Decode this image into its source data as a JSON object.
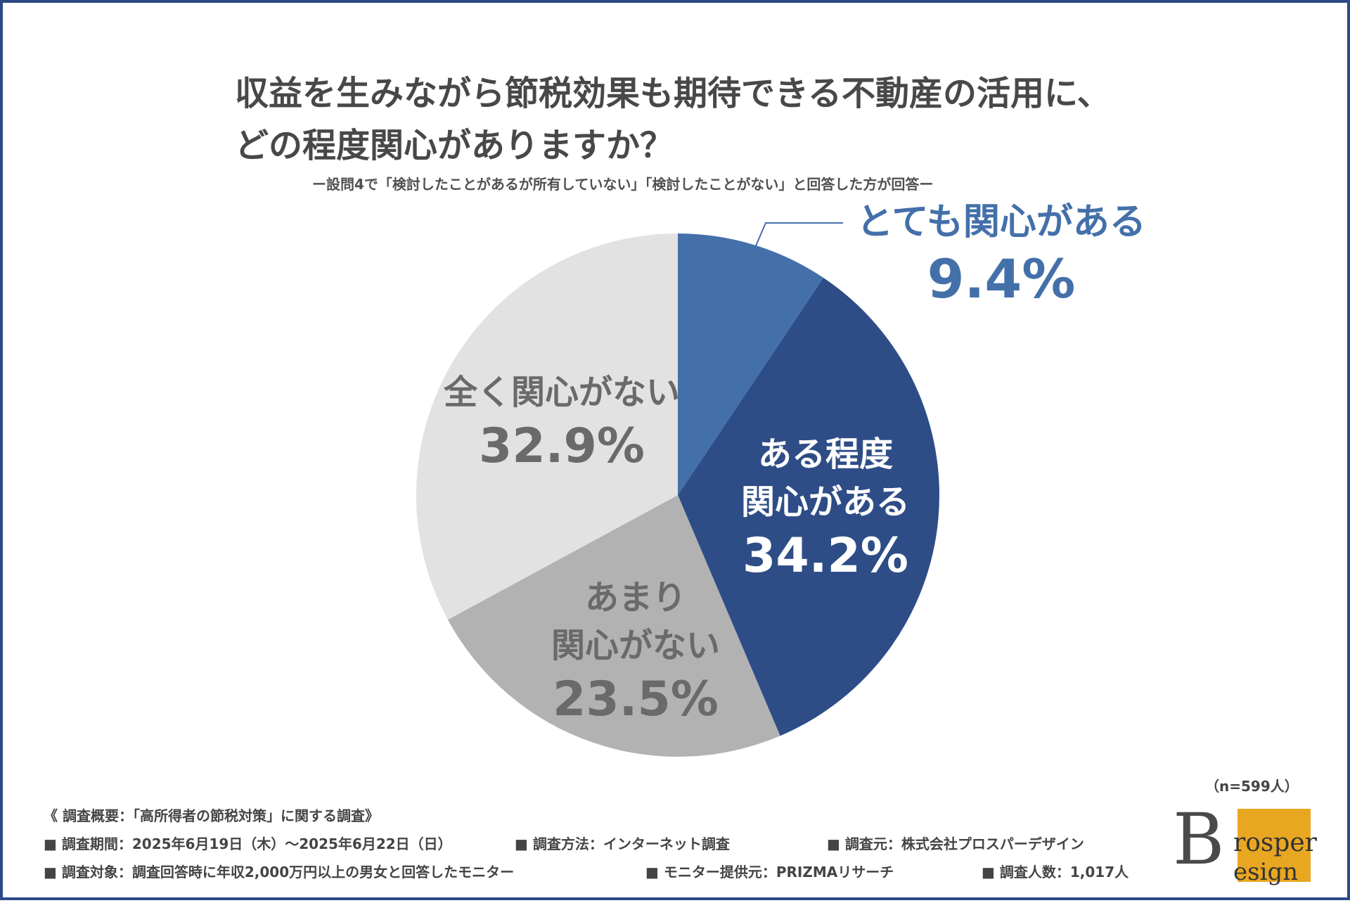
{
  "title": {
    "line1": "収益を生みながら節税効果も期待できる不動産の活用に、",
    "line2": "どの程度関心がありますか？"
  },
  "subtitle": "ー設問4で「検討したことがあるが所有していない」「検討したことがない」と回答した方が回答ー",
  "sample_size": "（n=599人）",
  "chart_data": {
    "type": "pie",
    "title": "収益を生みながら節税効果も期待できる不動産の活用に、どの程度関心がありますか？",
    "start": "12 o'clock, clockwise",
    "categories": [
      "とても関心がある",
      "ある程度関心がある",
      "あまり関心がない",
      "全く関心がない"
    ],
    "values": [
      9.4,
      34.2,
      23.5,
      32.9
    ],
    "value_labels": [
      "9.4%",
      "34.2%",
      "23.5%",
      "32.9%"
    ],
    "colors": [
      "#4470aa",
      "#2e4d87",
      "#b2b2b2",
      "#e2e2e2"
    ],
    "leader_line_color": "#4470aa"
  },
  "labels": {
    "very": {
      "text": "とても関心がある"
    },
    "some": {
      "line1": "ある程度",
      "line2": "関心がある"
    },
    "not_much": {
      "line1": "あまり",
      "line2": "関心がない"
    },
    "none": {
      "text": "全く関心がない"
    }
  },
  "footer": {
    "heading": "《 調査概要：「高所得者の節税対策」に関する調査》",
    "period": "■ 調査期間：2025年6月19日（木）～2025年6月22日（日）",
    "method": "■ 調査方法：インターネット調査",
    "source": "■ 調査元：株式会社プロスパーデザイン",
    "target": "■ 調査対象：調査回答時に年収2,000万円以上の男女と回答したモニター",
    "provider": "■ モニター提供元：PRIZMAリサーチ",
    "count": "■ 調査人数：1,017人"
  },
  "logo": {
    "letter": "B",
    "word1": "rosper",
    "word2": "esign"
  }
}
